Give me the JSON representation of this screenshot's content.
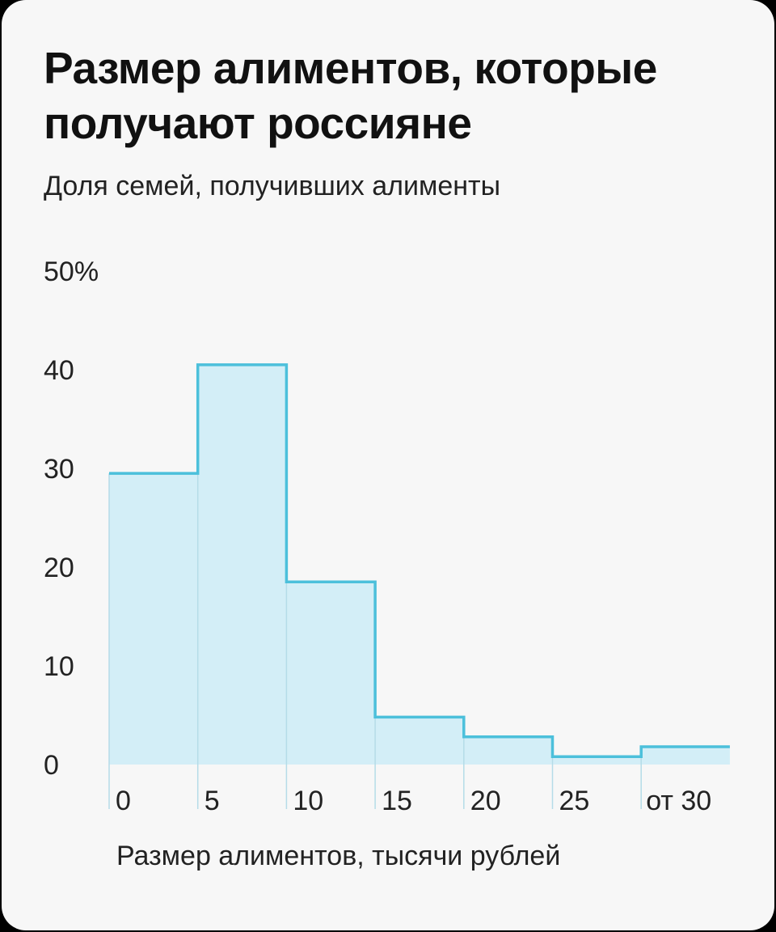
{
  "chart_data": {
    "type": "bar",
    "title": "Размер алиментов, которые получают россияне",
    "subtitle": "Доля семей, получивших алименты",
    "xlabel": "Размер алиментов, тысячи рублей",
    "ylabel": "",
    "y_tick_labels": [
      "0",
      "10",
      "20",
      "30",
      "40",
      "50%"
    ],
    "y_ticks": [
      0,
      10,
      20,
      30,
      40,
      50
    ],
    "ylim": [
      0,
      50
    ],
    "categories": [
      "0",
      "5",
      "10",
      "15",
      "20",
      "25",
      "от 30"
    ],
    "values": [
      29.5,
      40.5,
      18.5,
      4.8,
      2.8,
      0.8,
      1.8
    ],
    "grid": false,
    "colors": {
      "fill": "#d3eef7",
      "line": "#4cc0db",
      "separator": "#b5dce8"
    }
  }
}
